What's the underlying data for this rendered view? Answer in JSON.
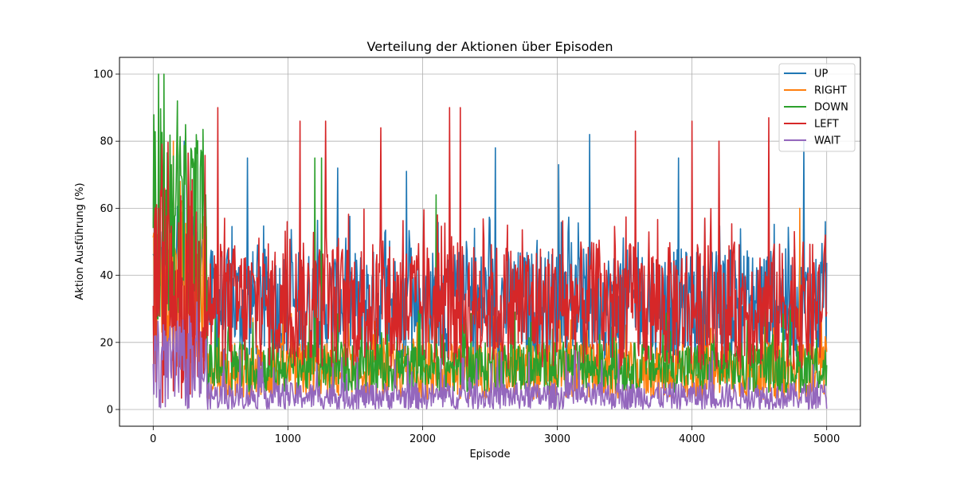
{
  "chart_data": {
    "type": "line",
    "title": "Verteilung der Aktionen über Episoden",
    "xlabel": "Episode",
    "ylabel": "Aktion Ausführung (%)",
    "xlim": [
      -250,
      5250
    ],
    "ylim": [
      -5,
      105
    ],
    "xticks": [
      0,
      1000,
      2000,
      3000,
      4000,
      5000
    ],
    "yticks": [
      0,
      20,
      40,
      60,
      80,
      100
    ],
    "grid": true,
    "legend_position": "top-right",
    "x_range": [
      0,
      5000
    ],
    "series": [
      {
        "name": "UP",
        "color": "#1f77b4",
        "profile": {
          "early": [
            30,
            55
          ],
          "base": [
            15,
            48
          ],
          "spikes": [
            [
              230,
              80
            ],
            [
              700,
              75
            ],
            [
              1370,
              72
            ],
            [
              1880,
              71
            ],
            [
              2540,
              78
            ],
            [
              3010,
              73
            ],
            [
              3240,
              82
            ],
            [
              3900,
              75
            ],
            [
              4830,
              80
            ],
            [
              4990,
              56
            ]
          ]
        }
      },
      {
        "name": "RIGHT",
        "color": "#ff7f0e",
        "profile": {
          "early": [
            10,
            60
          ],
          "base": [
            3,
            20
          ],
          "spikes": [
            [
              150,
              80
            ],
            [
              200,
              68
            ],
            [
              4800,
              60
            ]
          ]
        }
      },
      {
        "name": "DOWN",
        "color": "#2ca02c",
        "profile": {
          "early": [
            25,
            85
          ],
          "base": [
            5,
            20
          ],
          "spikes": [
            [
              40,
              100
            ],
            [
              80,
              100
            ],
            [
              180,
              92
            ],
            [
              350,
              72
            ],
            [
              1200,
              75
            ],
            [
              1250,
              75
            ],
            [
              2100,
              64
            ]
          ]
        }
      },
      {
        "name": "LEFT",
        "color": "#d62728",
        "profile": {
          "early": [
            0,
            70
          ],
          "base": [
            12,
            50
          ],
          "spikes": [
            [
              480,
              90
            ],
            [
              1090,
              86
            ],
            [
              1280,
              86
            ],
            [
              1690,
              84
            ],
            [
              2200,
              90
            ],
            [
              2280,
              90
            ],
            [
              3580,
              83
            ],
            [
              4000,
              86
            ],
            [
              4200,
              80
            ],
            [
              4570,
              87
            ],
            [
              4990,
              52
            ]
          ]
        }
      },
      {
        "name": "WAIT",
        "color": "#9467bd",
        "profile": {
          "early": [
            0,
            25
          ],
          "base": [
            0,
            8
          ],
          "spikes": [
            [
              20,
              22
            ],
            [
              300,
              12
            ]
          ]
        }
      }
    ]
  }
}
